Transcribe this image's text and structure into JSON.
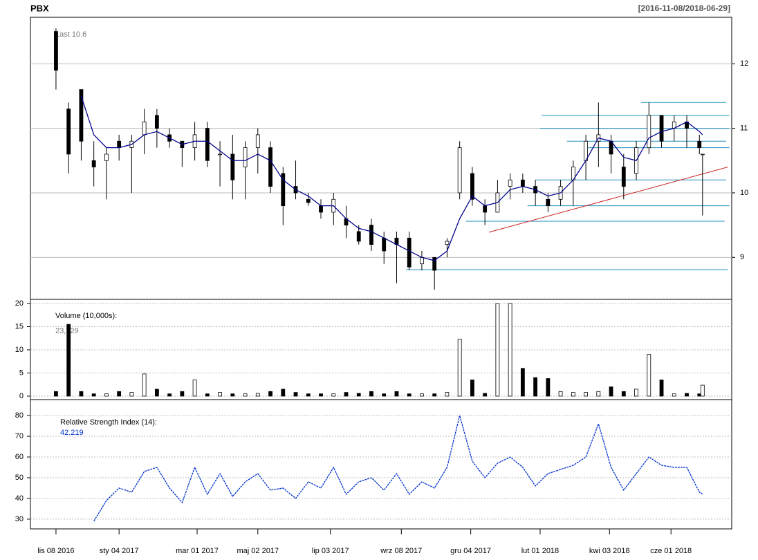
{
  "chart_data": {
    "type": "candlestick",
    "title": "PBX",
    "subtitle": "[2016-11-08/2018-06-29]",
    "annotation": "Last 10.6",
    "x": [
      0,
      8,
      16,
      24,
      32,
      40,
      48,
      56,
      64,
      72,
      80,
      88,
      96,
      104,
      112,
      120,
      128,
      136,
      144,
      152,
      160,
      168,
      176,
      184,
      192,
      200,
      208,
      216,
      224,
      232,
      240,
      248,
      256,
      264,
      272,
      280,
      288,
      296,
      304,
      312,
      320,
      328,
      336,
      344,
      352,
      360,
      368,
      376,
      384,
      392,
      400,
      408,
      410
    ],
    "xlim": [
      -16.2,
      428.5
    ],
    "xticks": [
      {
        "value": 0,
        "label": "lis 08 2016"
      },
      {
        "value": 40,
        "label": "sty 04 2017"
      },
      {
        "value": 89.5,
        "label": "mar 01 2017"
      },
      {
        "value": 128,
        "label": "maj 02 2017"
      },
      {
        "value": 174,
        "label": "lip 03 2017"
      },
      {
        "value": 219,
        "label": "wrz 08 2017"
      },
      {
        "value": 263,
        "label": "gru 04 2017"
      },
      {
        "value": 307,
        "label": "lut 01 2018"
      },
      {
        "value": 351,
        "label": "kwi 03 2018"
      },
      {
        "value": 390,
        "label": "cze 01 2018"
      }
    ],
    "open": [
      12.5,
      11.3,
      11.6,
      10.5,
      10.5,
      10.8,
      10.7,
      10.9,
      11.2,
      10.9,
      10.8,
      10.7,
      11.0,
      10.6,
      10.6,
      10.4,
      10.7,
      10.7,
      10.3,
      10.1,
      9.9,
      9.8,
      9.7,
      9.6,
      9.4,
      9.5,
      9.3,
      9.3,
      9.3,
      8.9,
      9.0,
      9.2,
      10.0,
      10.3,
      9.8,
      9.7,
      10.1,
      10.2,
      10.1,
      9.9,
      9.9,
      10.2,
      10.5,
      10.8,
      10.8,
      10.4,
      10.3,
      10.7,
      11.2,
      11.0,
      11.1,
      10.8,
      10.6
    ],
    "high": [
      12.55,
      11.4,
      11.6,
      10.8,
      10.7,
      10.9,
      10.9,
      11.3,
      11.3,
      11.0,
      10.8,
      11.1,
      11.1,
      10.8,
      10.9,
      10.8,
      11.0,
      10.8,
      10.4,
      10.5,
      10.0,
      9.9,
      10.0,
      9.8,
      9.5,
      9.6,
      9.4,
      9.4,
      9.4,
      9.1,
      9.0,
      9.3,
      10.8,
      10.4,
      9.9,
      10.2,
      10.3,
      10.3,
      10.2,
      10.0,
      10.2,
      10.5,
      10.9,
      11.4,
      10.9,
      10.6,
      10.8,
      11.4,
      11.2,
      11.2,
      11.2,
      10.9,
      10.6
    ],
    "low": [
      11.6,
      10.3,
      10.5,
      10.1,
      9.9,
      10.5,
      10.0,
      10.6,
      10.7,
      10.7,
      10.4,
      10.5,
      10.4,
      10.1,
      9.9,
      9.9,
      10.3,
      10.0,
      9.5,
      9.9,
      9.8,
      9.6,
      9.5,
      9.3,
      9.2,
      9.1,
      8.9,
      8.6,
      8.8,
      8.8,
      8.5,
      9.0,
      9.9,
      9.8,
      9.5,
      9.7,
      9.9,
      10.0,
      9.8,
      9.7,
      9.8,
      9.8,
      10.2,
      10.4,
      10.3,
      9.9,
      10.2,
      10.6,
      10.7,
      10.8,
      10.7,
      10.6,
      9.65
    ],
    "close": [
      11.9,
      10.6,
      10.8,
      10.4,
      10.6,
      10.7,
      10.8,
      11.1,
      11.0,
      10.8,
      10.7,
      10.9,
      10.5,
      10.6,
      10.2,
      10.7,
      10.9,
      10.1,
      9.8,
      10.0,
      9.85,
      9.7,
      9.9,
      9.5,
      9.25,
      9.2,
      9.1,
      9.2,
      8.85,
      9.0,
      8.8,
      9.25,
      10.7,
      9.9,
      9.7,
      10.0,
      10.2,
      10.1,
      10.0,
      9.8,
      10.1,
      10.4,
      10.8,
      10.9,
      10.6,
      10.1,
      10.7,
      11.2,
      10.8,
      11.1,
      11.0,
      10.7,
      10.6
    ],
    "up_color": "#ffffff",
    "down_color": "#000000",
    "ylim": [
      8.35,
      12.72
    ],
    "yticks": [
      9,
      10,
      11,
      12
    ],
    "grid": true,
    "sma": {
      "color": "#00008b",
      "values": [
        null,
        null,
        11.5,
        10.9,
        10.7,
        10.7,
        10.75,
        10.9,
        10.95,
        10.85,
        10.75,
        10.8,
        10.8,
        10.65,
        10.5,
        10.5,
        10.6,
        10.5,
        10.2,
        10.05,
        9.95,
        9.8,
        9.8,
        9.6,
        9.45,
        9.4,
        9.3,
        9.2,
        9.1,
        9.0,
        8.95,
        9.1,
        9.6,
        9.95,
        9.8,
        9.85,
        10.05,
        10.1,
        10.05,
        9.95,
        10.0,
        10.2,
        10.5,
        10.85,
        10.8,
        10.55,
        10.5,
        10.85,
        10.95,
        11.0,
        11.1,
        10.95,
        10.9
      ]
    },
    "hline_color": "#1f8fbf",
    "hlines": [
      {
        "value": 11.4,
        "from": 371,
        "to": 425
      },
      {
        "value": 11.2,
        "from": 308,
        "to": 427
      },
      {
        "value": 11.0,
        "from": 307,
        "to": 427
      },
      {
        "value": 10.8,
        "from": 324,
        "to": 425
      },
      {
        "value": 10.7,
        "from": 335,
        "to": 427
      },
      {
        "value": 10.2,
        "from": 304,
        "to": 425
      },
      {
        "value": 9.8,
        "from": 299,
        "to": 427
      },
      {
        "value": 9.56,
        "from": 260,
        "to": 424
      },
      {
        "value": 8.81,
        "from": 222,
        "to": 426
      }
    ],
    "trendline": {
      "color": "#cc2222",
      "x": [
        274.6,
        426
      ],
      "values": [
        9.39,
        10.4
      ]
    },
    "volume": {
      "label": "Volume (10,000s):",
      "last_label": "23,729",
      "values": [
        1,
        15.5,
        1,
        0.5,
        0.5,
        1,
        0.8,
        4.8,
        1.5,
        0.5,
        1,
        3.5,
        0.5,
        0.8,
        0.5,
        0.5,
        0.6,
        1,
        1.5,
        0.8,
        0.5,
        0.5,
        0.5,
        0.8,
        0.6,
        1,
        0.5,
        1,
        0.5,
        0.5,
        0.5,
        0.8,
        12.3,
        3.5,
        0.6,
        20,
        20,
        6,
        4,
        3.8,
        1,
        0.8,
        0.8,
        1,
        2,
        1,
        1.5,
        9,
        3.5,
        0.5,
        0.6,
        0.5,
        2.37
      ],
      "ylim": [
        -0.75,
        20.9
      ],
      "yticks": [
        0,
        5,
        10,
        15,
        20
      ]
    },
    "rsi": {
      "label": "Relative Strength Index (14):",
      "last_label": "42.219",
      "color": "#0033cc",
      "values": [
        null,
        null,
        null,
        29,
        39,
        45,
        43,
        53,
        55,
        45,
        38,
        55,
        42,
        52,
        41,
        48,
        52,
        44,
        45,
        40,
        48,
        45,
        55,
        42,
        48,
        50,
        44,
        52,
        42,
        48,
        45,
        55,
        80,
        58,
        50,
        57,
        60,
        55,
        46,
        52,
        54,
        56,
        60,
        76,
        55,
        44,
        52,
        60,
        56,
        55,
        55,
        43,
        42.219
      ],
      "ylim": [
        25.3,
        87.7
      ],
      "yticks": [
        30,
        40,
        50,
        60,
        70,
        80
      ]
    }
  }
}
